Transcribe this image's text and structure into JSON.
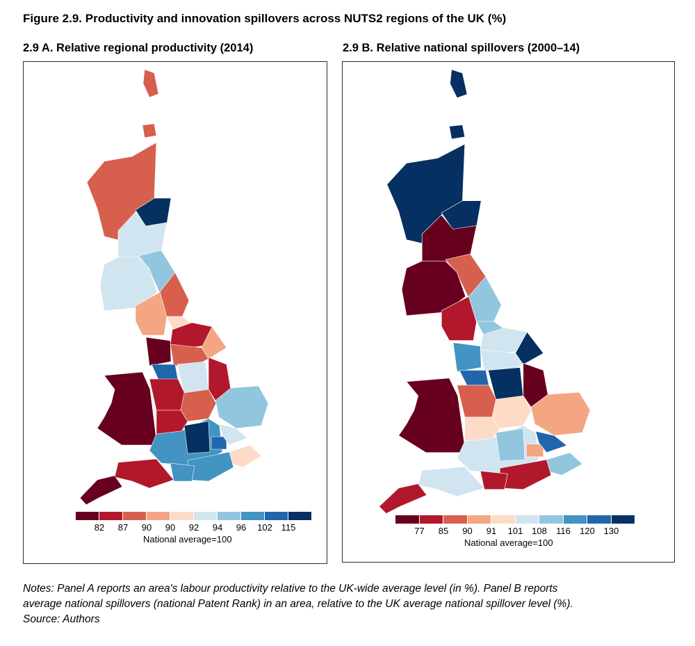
{
  "title": "Figure 2.9. Productivity and innovation spillovers across NUTS2 regions of the UK (%)",
  "colors": [
    "#67001f",
    "#b2182b",
    "#d6604d",
    "#f4a582",
    "#fddbc7",
    "#d1e5f0",
    "#92c5de",
    "#4393c3",
    "#2166ac",
    "#053061"
  ],
  "panel_a": {
    "subtitle": "2.9 A. Relative regional productivity (2014)",
    "legend_ticks": [
      "82",
      "87",
      "90",
      "90",
      "92",
      "94",
      "96",
      "102",
      "115"
    ],
    "legend_caption": "National average=100",
    "region_classes": [
      2,
      2,
      2,
      9,
      5,
      6,
      5,
      2,
      3,
      4,
      1,
      3,
      0,
      2,
      8,
      5,
      1,
      0,
      1,
      2,
      6,
      1,
      7,
      9,
      8,
      5,
      4,
      7,
      7,
      1,
      0
    ]
  },
  "panel_b": {
    "subtitle": "2.9 B. Relative national spillovers (2000–14)",
    "legend_ticks": [
      "77",
      "85",
      "90",
      "91",
      "101",
      "108",
      "116",
      "120",
      "130"
    ],
    "legend_caption": "National average=100",
    "region_classes": [
      9,
      9,
      9,
      9,
      0,
      2,
      0,
      6,
      1,
      6,
      5,
      9,
      7,
      5,
      8,
      9,
      0,
      0,
      2,
      4,
      3,
      4,
      5,
      6,
      3,
      8,
      6,
      1,
      1,
      5,
      1
    ]
  },
  "notes": {
    "line1": "Notes: Panel A reports an area's labour productivity relative to the UK-wide average level (in %). Panel B reports",
    "line2": "average national spillovers (national Patent Rank) in an area, relative to the UK average national spillover level (%).",
    "line3": "Source: Authors"
  }
}
